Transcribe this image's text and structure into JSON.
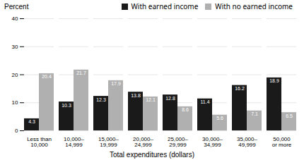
{
  "chart_data": {
    "type": "bar",
    "categories": [
      "Less than\n10,000",
      "10,000–\n14,999",
      "15,000–\n19,999",
      "20,000–\n24,999",
      "25,000–\n29,999",
      "30,000–\n34,999",
      "35,000–\n49,999",
      "50,000\nor more"
    ],
    "series": [
      {
        "name": "With earned income",
        "color": "#1a1a1a",
        "values": [
          4.3,
          10.3,
          12.3,
          13.8,
          12.8,
          11.4,
          16.2,
          18.9
        ]
      },
      {
        "name": "With no earned income",
        "color": "#b0b0b0",
        "values": [
          20.4,
          21.7,
          17.9,
          12.1,
          8.6,
          5.6,
          7.1,
          6.5
        ]
      }
    ],
    "xlabel": "Total expenditures (dollars)",
    "ylabel": "Percent",
    "ylim": [
      0,
      40
    ],
    "yticks": [
      0,
      10,
      20,
      30,
      40
    ],
    "grid": true,
    "data_labels": true,
    "legend": "upper right"
  }
}
